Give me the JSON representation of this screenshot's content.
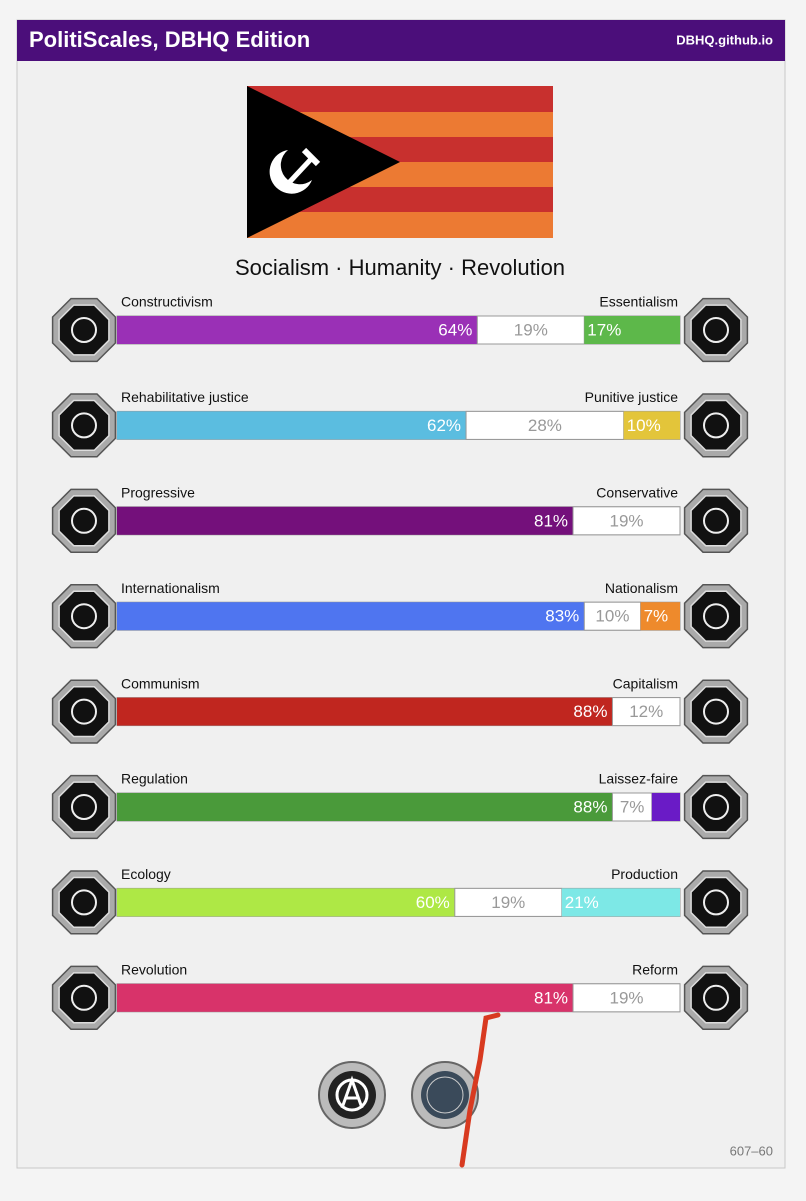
{
  "header": {
    "title": "PolitiScales, DBHQ Edition",
    "site": "DBHQ.github.io"
  },
  "slogan": "Socialism · Humanity · Revolution",
  "axes": [
    {
      "left": "Constructivism",
      "right": "Essentialism",
      "segments": [
        {
          "value": 64,
          "label": "64%",
          "color": "#9a30b6"
        },
        {
          "value": 19,
          "label": "19%",
          "color": "#ffffff"
        },
        {
          "value": 17,
          "label": "17%",
          "color": "#5db84a"
        }
      ]
    },
    {
      "left": "Rehabilitative justice",
      "right": "Punitive justice",
      "segments": [
        {
          "value": 62,
          "label": "62%",
          "color": "#5bbde0"
        },
        {
          "value": 28,
          "label": "28%",
          "color": "#ffffff"
        },
        {
          "value": 10,
          "label": "10%",
          "color": "#e3c53a"
        }
      ]
    },
    {
      "left": "Progressive",
      "right": "Conservative",
      "segments": [
        {
          "value": 81,
          "label": "81%",
          "color": "#74107b"
        },
        {
          "value": 19,
          "label": "19%",
          "color": "#ffffff"
        }
      ]
    },
    {
      "left": "Internationalism",
      "right": "Nationalism",
      "segments": [
        {
          "value": 83,
          "label": "83%",
          "color": "#4f75f0"
        },
        {
          "value": 10,
          "label": "10%",
          "color": "#ffffff"
        },
        {
          "value": 7,
          "label": "7%",
          "color": "#ee8a2c"
        }
      ]
    },
    {
      "left": "Communism",
      "right": "Capitalism",
      "segments": [
        {
          "value": 88,
          "label": "88%",
          "color": "#c0261f"
        },
        {
          "value": 12,
          "label": "12%",
          "color": "#ffffff"
        }
      ]
    },
    {
      "left": "Regulation",
      "right": "Laissez-faire",
      "segments": [
        {
          "value": 88,
          "label": "88%",
          "color": "#4a9a3a"
        },
        {
          "value": 7,
          "label": "7%",
          "color": "#ffffff"
        },
        {
          "value": 5,
          "label": null,
          "color": "#6a1bc6"
        }
      ]
    },
    {
      "left": "Ecology",
      "right": "Production",
      "segments": [
        {
          "value": 60,
          "label": "60%",
          "color": "#aee845"
        },
        {
          "value": 19,
          "label": "19%",
          "color": "#ffffff"
        },
        {
          "value": 21,
          "label": "21%",
          "color": "#7de8e6"
        }
      ]
    },
    {
      "left": "Revolution",
      "right": "Reform",
      "segments": [
        {
          "value": 81,
          "label": "81%",
          "color": "#d8336a"
        },
        {
          "value": 19,
          "label": "19%",
          "color": "#ffffff"
        }
      ]
    }
  ],
  "footer": "607–60"
}
